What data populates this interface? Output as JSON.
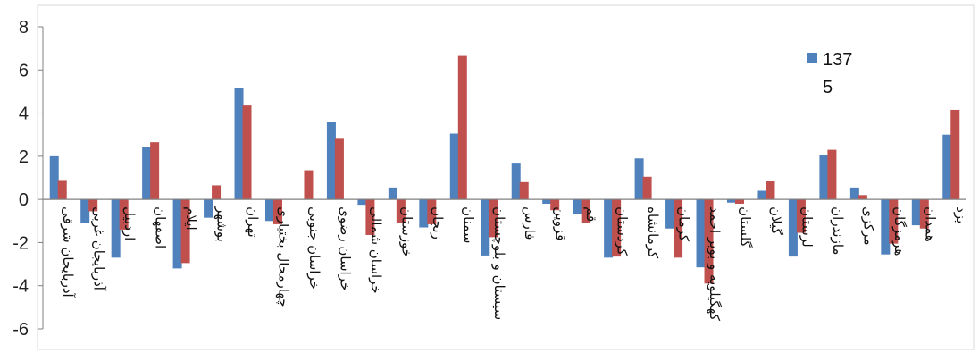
{
  "chart_data": {
    "type": "bar",
    "ylim": [
      -6,
      8
    ],
    "yticks": [
      8,
      6,
      4,
      2,
      0,
      -2,
      -4,
      -6
    ],
    "grid": false,
    "legend": "top-right",
    "categories": [
      "آذربایجان شرقی",
      "آذربایجان غربی",
      "اردبیل",
      "اصفهان",
      "ایلام",
      "بوشهر",
      "تهران",
      "چهارمحال بختیاری",
      "خراسان جنوبی",
      "خراسان رضوی",
      "خراسان شمالی",
      "خوزستان",
      "زنجان",
      "سمنان",
      "سیستان و بلوچستان",
      "فارس",
      "قزوین",
      "قم",
      "کردستان",
      "کرمانشاه",
      "کرمان",
      "کهگیلویه و بویر احمد",
      "گلستان",
      "گیلان",
      "لرستان",
      "مازندران",
      "مرکزی",
      "هرمزگان",
      "همدان",
      "یزد"
    ],
    "series": [
      {
        "name": "1375",
        "color": "#4f81bd",
        "values": [
          2.0,
          -1.1,
          -2.7,
          2.45,
          -3.2,
          -0.85,
          5.15,
          -1.0,
          0.0,
          3.6,
          -0.25,
          0.55,
          -1.3,
          3.05,
          -2.6,
          1.7,
          -0.2,
          -0.7,
          -2.7,
          1.9,
          -1.35,
          -3.15,
          -0.15,
          0.4,
          -2.65,
          2.05,
          0.55,
          -2.55,
          -1.2,
          3.0
        ]
      },
      {
        "name": "",
        "color": "#c0504d",
        "values": [
          0.9,
          -0.55,
          -1.4,
          2.65,
          -2.95,
          0.65,
          4.35,
          -1.15,
          1.35,
          2.85,
          -1.65,
          -1.1,
          -1.15,
          6.65,
          -1.75,
          0.8,
          -0.5,
          -1.1,
          -2.65,
          1.05,
          -2.7,
          -3.9,
          -0.2,
          0.85,
          -1.55,
          2.3,
          0.2,
          -2.05,
          -1.35,
          4.15
        ]
      }
    ],
    "legend_entries": [
      {
        "color": "#4f81bd",
        "line1": "137",
        "line2": "5"
      }
    ]
  }
}
